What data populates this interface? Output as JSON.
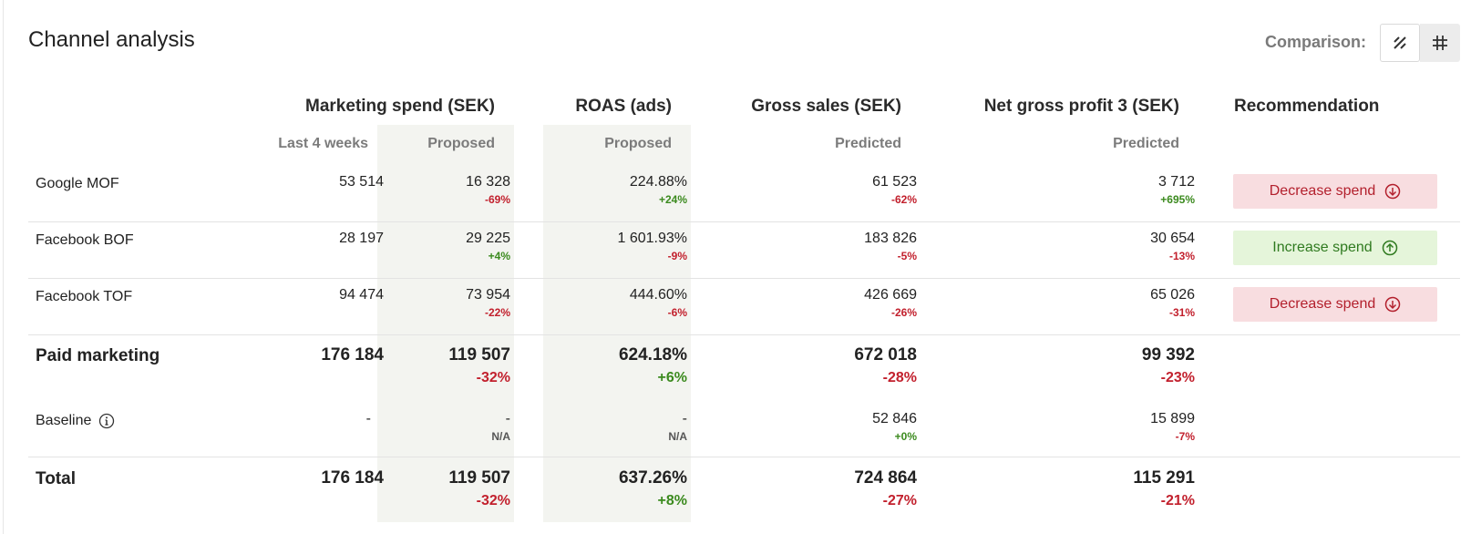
{
  "title": "Channel analysis",
  "comparison": {
    "label": "Comparison:",
    "active_mode": "percent-icon",
    "other_mode": "hash-icon"
  },
  "columns": {
    "marketing_spend": {
      "header": "Marketing spend (SEK)",
      "sub_last": "Last 4 weeks",
      "sub_proposed": "Proposed"
    },
    "roas": {
      "header": "ROAS (ads)",
      "sub": "Proposed"
    },
    "gross_sales": {
      "header": "Gross sales (SEK)",
      "sub": "Predicted"
    },
    "net_profit": {
      "header": "Net gross profit 3 (SEK)",
      "sub": "Predicted"
    },
    "recommendation": {
      "header": "Recommendation"
    }
  },
  "rows": [
    {
      "label": "Google MOF",
      "spend_last": "53 514",
      "spend_proposed": "16 328",
      "spend_proposed_delta": "-69%",
      "roas": "224.88%",
      "roas_delta": "+24%",
      "gross_sales": "61 523",
      "gross_sales_delta": "-62%",
      "net_profit": "3 712",
      "net_profit_delta": "+695%",
      "recommendation": "Decrease spend"
    },
    {
      "label": "Facebook BOF",
      "spend_last": "28 197",
      "spend_proposed": "29 225",
      "spend_proposed_delta": "+4%",
      "roas": "1 601.93%",
      "roas_delta": "-9%",
      "gross_sales": "183 826",
      "gross_sales_delta": "-5%",
      "net_profit": "30 654",
      "net_profit_delta": "-13%",
      "recommendation": "Increase spend"
    },
    {
      "label": "Facebook TOF",
      "spend_last": "94 474",
      "spend_proposed": "73 954",
      "spend_proposed_delta": "-22%",
      "roas": "444.60%",
      "roas_delta": "-6%",
      "gross_sales": "426 669",
      "gross_sales_delta": "-26%",
      "net_profit": "65 026",
      "net_profit_delta": "-31%",
      "recommendation": "Decrease spend"
    }
  ],
  "paid_marketing": {
    "label": "Paid marketing",
    "spend_last": "176 184",
    "spend_proposed": "119 507",
    "spend_proposed_delta": "-32%",
    "roas": "624.18%",
    "roas_delta": "+6%",
    "gross_sales": "672 018",
    "gross_sales_delta": "-28%",
    "net_profit": "99 392",
    "net_profit_delta": "-23%"
  },
  "baseline": {
    "label": "Baseline",
    "spend_last": "-",
    "spend_proposed": "-",
    "spend_proposed_delta": "N/A",
    "roas": "-",
    "roas_delta": "N/A",
    "gross_sales": "52 846",
    "gross_sales_delta": "+0%",
    "net_profit": "15 899",
    "net_profit_delta": "-7%"
  },
  "total": {
    "label": "Total",
    "spend_last": "176 184",
    "spend_proposed": "119 507",
    "spend_proposed_delta": "-32%",
    "roas": "637.26%",
    "roas_delta": "+8%",
    "gross_sales": "724 864",
    "gross_sales_delta": "-27%",
    "net_profit": "115 291",
    "net_profit_delta": "-21%"
  },
  "colors": {
    "negative": "#c2202d",
    "positive": "#3b8a1e",
    "decrease_bg": "#f8dde0",
    "increase_bg": "#e5f5da",
    "highlight_column": "#f3f4f0"
  }
}
